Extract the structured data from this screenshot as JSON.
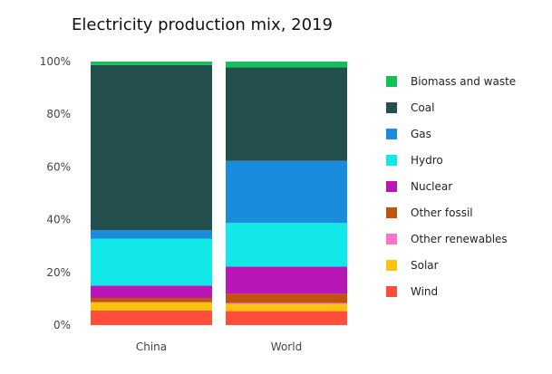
{
  "chart_data": {
    "type": "bar",
    "stacked": true,
    "normalized": true,
    "title": "Electricity production mix, 2019",
    "categories": [
      "China",
      "World"
    ],
    "ylim": [
      0,
      100
    ],
    "yticks": [
      "0%",
      "20%",
      "40%",
      "60%",
      "80%",
      "100%"
    ],
    "grid": false,
    "legend_position": "right",
    "series": [
      {
        "name": "Wind",
        "color": "#ff4f3a",
        "values": [
          5.5,
          5.3
        ]
      },
      {
        "name": "Solar",
        "color": "#ffc20e",
        "values": [
          3.1,
          2.7
        ]
      },
      {
        "name": "Other renewables",
        "color": "#ff73c6",
        "values": [
          0.1,
          0.4
        ]
      },
      {
        "name": "Other fossil",
        "color": "#c0540b",
        "values": [
          1.6,
          3.5
        ]
      },
      {
        "name": "Nuclear",
        "color": "#b916b8",
        "values": [
          4.7,
          10.3
        ]
      },
      {
        "name": "Hydro",
        "color": "#13e8e8",
        "values": [
          17.8,
          16.6
        ]
      },
      {
        "name": "Gas",
        "color": "#1a8cdc",
        "values": [
          3.2,
          23.5
        ]
      },
      {
        "name": "Coal",
        "color": "#23504e",
        "values": [
          62.7,
          35.5
        ]
      },
      {
        "name": "Biomass and waste",
        "color": "#12c15a",
        "values": [
          1.3,
          2.2
        ]
      }
    ]
  }
}
